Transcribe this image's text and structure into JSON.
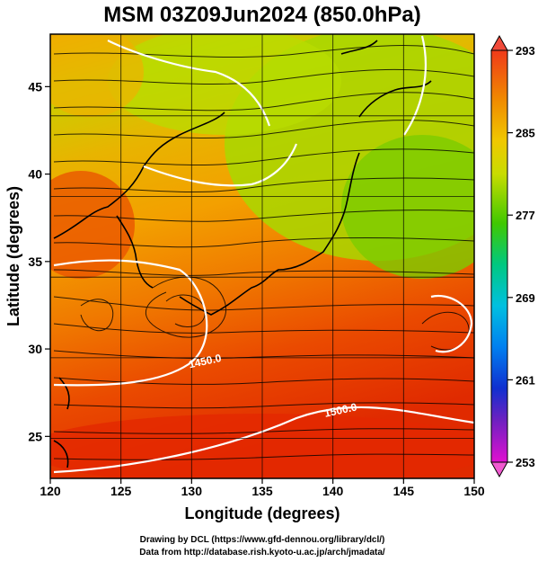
{
  "title": "MSM 03Z09Jun2024 (850.0hPa)",
  "map": {
    "xlabel": "Longitude (degrees)",
    "ylabel": "Latitude  (degrees)",
    "xlim": [
      120,
      150
    ],
    "ylim": [
      22.6,
      48
    ],
    "xticks": [
      "120",
      "125",
      "130",
      "135",
      "140",
      "145",
      "150"
    ],
    "yticks": [
      "25",
      "30",
      "35",
      "40",
      "45"
    ],
    "grid": true
  },
  "colorbar": {
    "min": 253,
    "max": 293,
    "ticks": [
      "293",
      "285",
      "277",
      "269",
      "261",
      "253"
    ]
  },
  "contours": [
    {
      "label": "1450.0",
      "lon": 131.0,
      "lat": 29.1
    },
    {
      "label": "1500.0",
      "lon": 140.6,
      "lat": 26.3
    }
  ],
  "footer": {
    "line1": "Drawing by DCL (https://www.gfd-dennou.org/library/dcl/)",
    "line2": "Data from http://database.rish.kyoto-u.ac.jp/arch/jmadata/"
  }
}
